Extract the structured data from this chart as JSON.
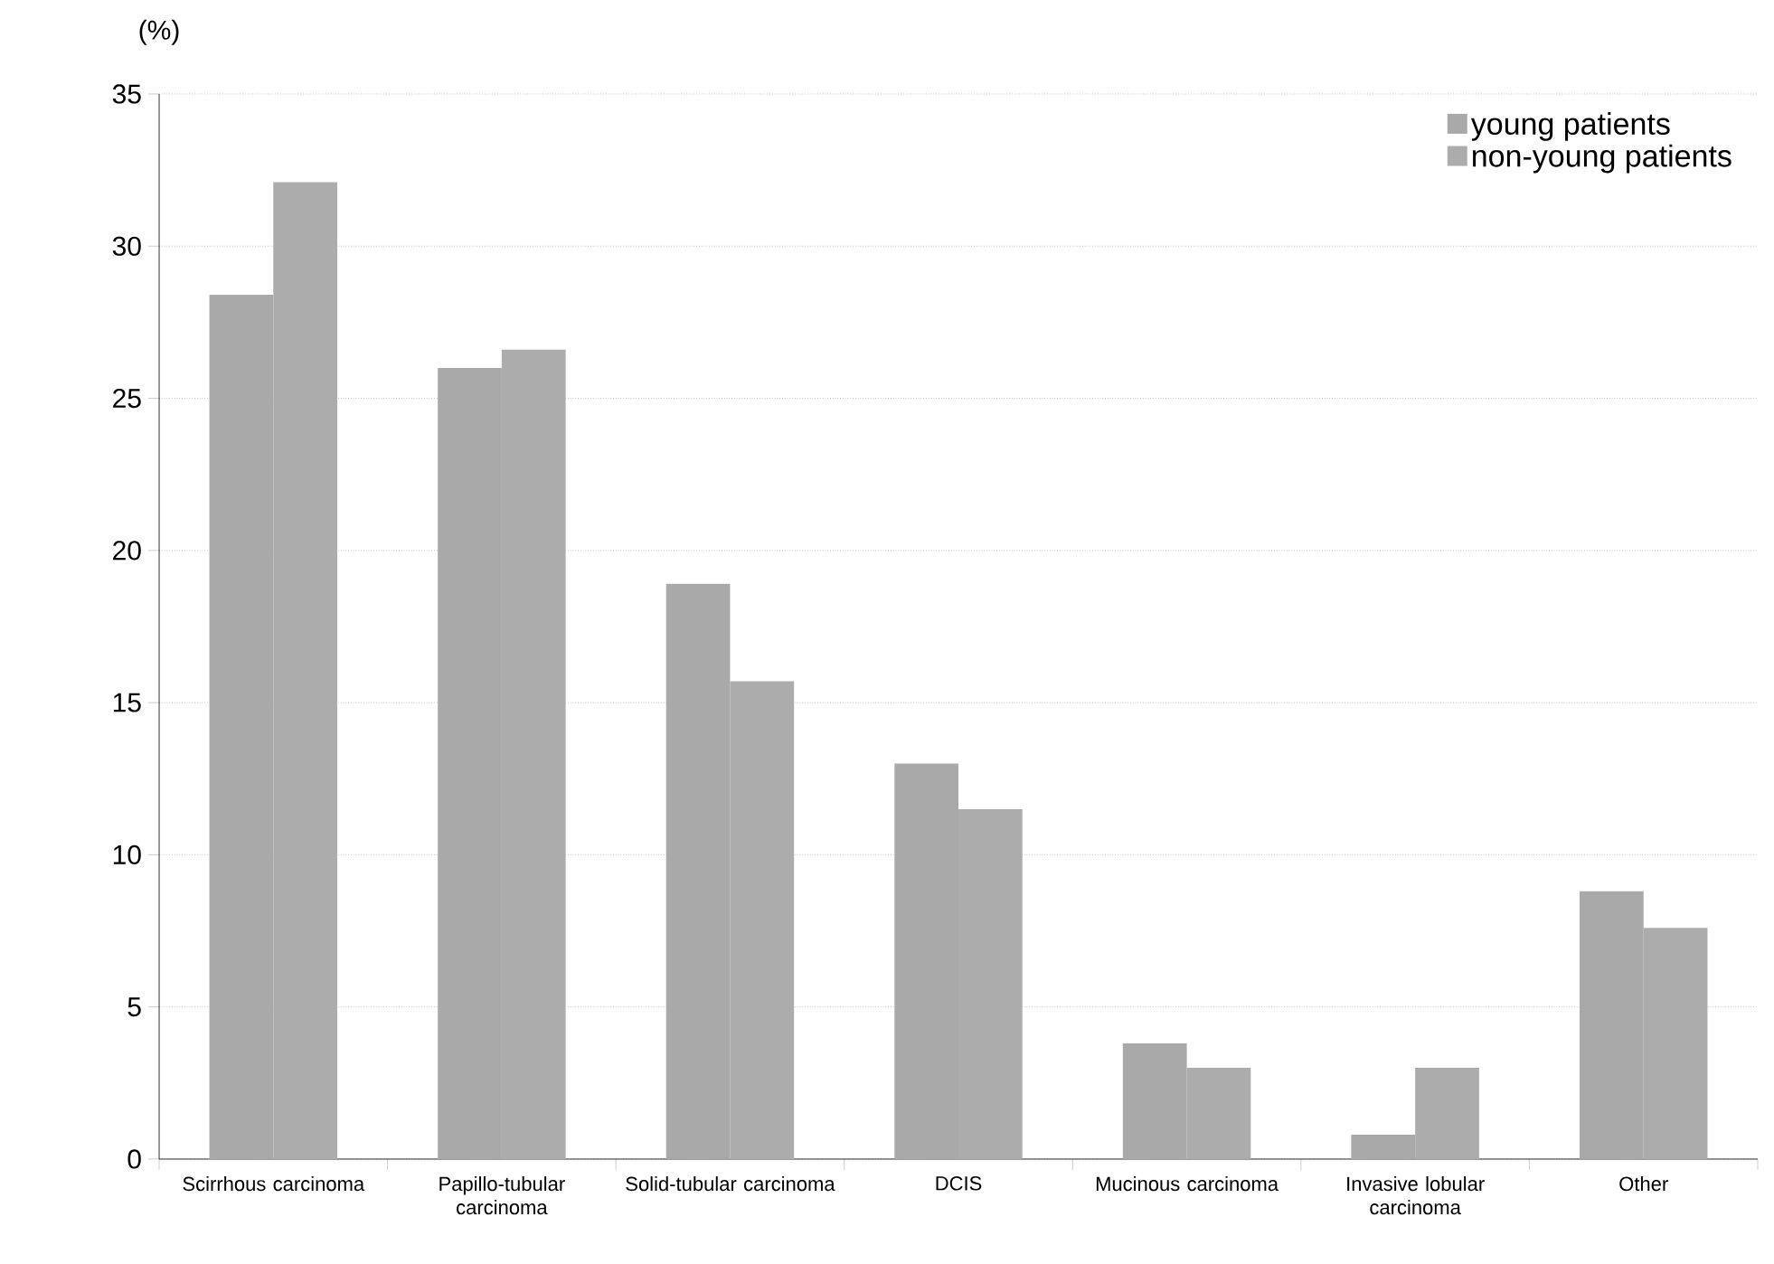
{
  "chart_data": {
    "type": "bar",
    "ylabel": "(%)",
    "categories": [
      "Scirrhous carcinoma",
      "Papillo-tubular carcinoma",
      "Solid-tubular carcinoma",
      "DCIS",
      "Mucinous carcinoma",
      "Invasive lobular carcinoma",
      "Other"
    ],
    "series": [
      {
        "name": "young patients",
        "color": "#a9a9a9",
        "values": [
          28.4,
          26.0,
          18.9,
          13.0,
          3.8,
          0.8,
          8.8
        ]
      },
      {
        "name": "non-young patients",
        "color": "#acacac",
        "values": [
          32.1,
          26.6,
          15.7,
          11.5,
          3.0,
          3.0,
          7.6
        ]
      }
    ],
    "ylim": [
      0,
      35
    ],
    "yticks": [
      0,
      5,
      10,
      15,
      20,
      25,
      30,
      35
    ],
    "grid": "y",
    "legend": "top right"
  }
}
